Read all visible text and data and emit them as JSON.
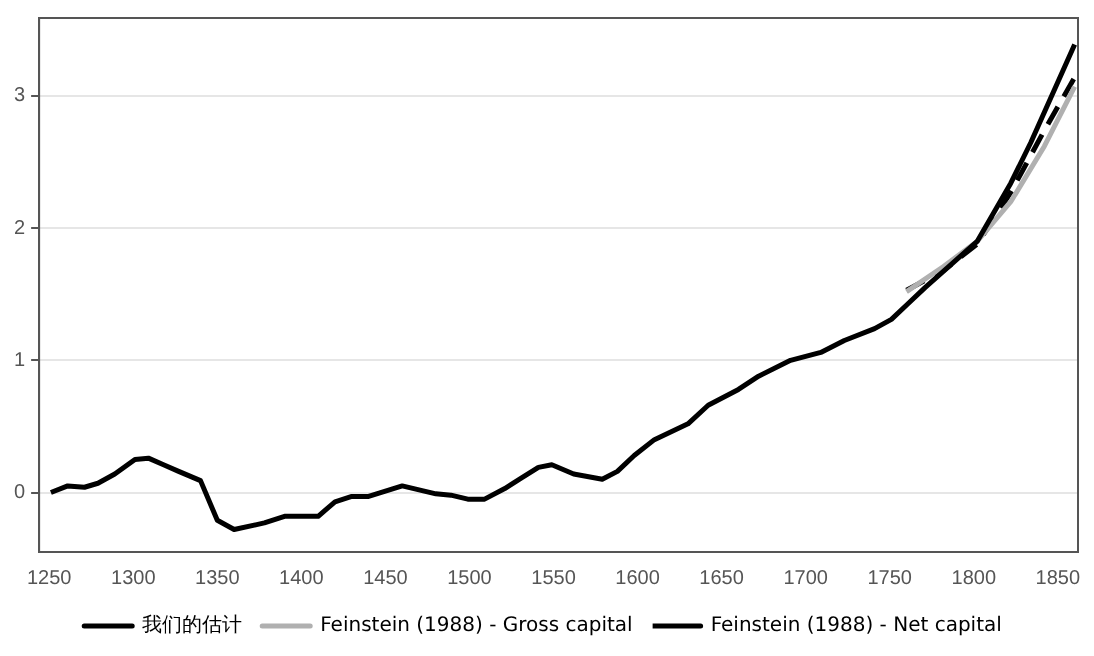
{
  "chart_data": {
    "type": "line",
    "xlim": [
      1244,
      1862
    ],
    "xticks": [
      1250,
      1300,
      1350,
      1400,
      1450,
      1500,
      1550,
      1600,
      1650,
      1700,
      1750,
      1800,
      1850
    ],
    "ylim": [
      -0.45,
      3.59
    ],
    "yticks": [
      0,
      1,
      2,
      3
    ],
    "grid": "y",
    "legend": "bottom",
    "marker": "none",
    "series": [
      {
        "name": "我们的估计",
        "color": "#000000",
        "line_style": "solid",
        "x": [
          1251,
          1261,
          1271,
          1279,
          1289,
          1301,
          1309,
          1318,
          1327,
          1340,
          1350,
          1360,
          1378,
          1390,
          1410,
          1420,
          1430,
          1440,
          1460,
          1480,
          1489,
          1499,
          1509,
          1521,
          1531,
          1541,
          1549,
          1562,
          1579,
          1588,
          1598,
          1610,
          1630,
          1642,
          1660,
          1672,
          1691,
          1709,
          1723,
          1741,
          1751,
          1761,
          1771,
          1802,
          1822,
          1834,
          1860
        ],
        "values": [
          0.0,
          0.05,
          0.04,
          0.07,
          0.14,
          0.25,
          0.26,
          0.21,
          0.16,
          0.09,
          -0.21,
          -0.28,
          -0.23,
          -0.18,
          -0.18,
          -0.07,
          -0.03,
          -0.03,
          0.05,
          -0.01,
          -0.02,
          -0.05,
          -0.05,
          0.03,
          0.11,
          0.19,
          0.21,
          0.14,
          0.1,
          0.16,
          0.28,
          0.4,
          0.52,
          0.66,
          0.78,
          0.88,
          1.0,
          1.06,
          1.15,
          1.24,
          1.31,
          1.43,
          1.55,
          1.9,
          2.34,
          2.65,
          3.39
        ]
      },
      {
        "name": "Feinstein (1988) - Gross capital",
        "color": "#b0b0b0",
        "line_style": "solid",
        "x": [
          1760,
          1782,
          1802,
          1822,
          1842,
          1860
        ],
        "values": [
          1.52,
          1.71,
          1.9,
          2.2,
          2.62,
          3.07
        ]
      },
      {
        "name": "Feinstein (1988) - Net capital",
        "color": "#000000",
        "line_style": "dashed",
        "x": [
          1760,
          1782,
          1802,
          1822,
          1842,
          1860
        ],
        "values": [
          1.53,
          1.68,
          1.88,
          2.27,
          2.74,
          3.14
        ]
      }
    ]
  }
}
